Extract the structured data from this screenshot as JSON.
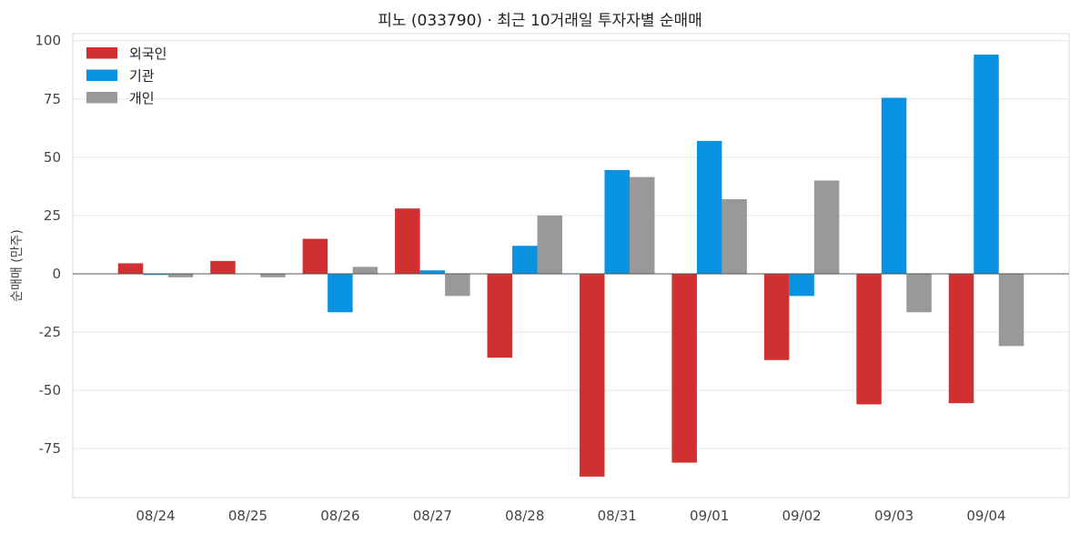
{
  "chart_data": {
    "type": "bar",
    "title": "피노 (033790) · 최근 10거래일 투자자별 순매매",
    "xlabel": "",
    "ylabel": "순매매 (만주)",
    "categories": [
      "08/24",
      "08/25",
      "08/26",
      "08/27",
      "08/28",
      "08/31",
      "09/01",
      "09/02",
      "09/03",
      "09/04"
    ],
    "series": [
      {
        "name": "외국인",
        "color": "#d03030",
        "values": [
          4.5,
          5.5,
          15,
          28,
          -36,
          -87,
          -81,
          -37,
          -56,
          -55.5
        ]
      },
      {
        "name": "기관",
        "color": "#0a92e2",
        "values": [
          -0.5,
          0,
          -16.5,
          1.5,
          12,
          44.5,
          57,
          -9.5,
          75.5,
          94
        ]
      },
      {
        "name": "개인",
        "color": "#999999",
        "values": [
          -1.5,
          -1.5,
          3,
          -9.5,
          25,
          41.5,
          32,
          40,
          -16.5,
          -31
        ]
      }
    ],
    "ylim": [
      -96,
      103
    ],
    "yticks": [
      -75,
      -50,
      -25,
      0,
      25,
      50,
      75,
      100
    ],
    "grid": true,
    "legend_position": "top-left"
  }
}
